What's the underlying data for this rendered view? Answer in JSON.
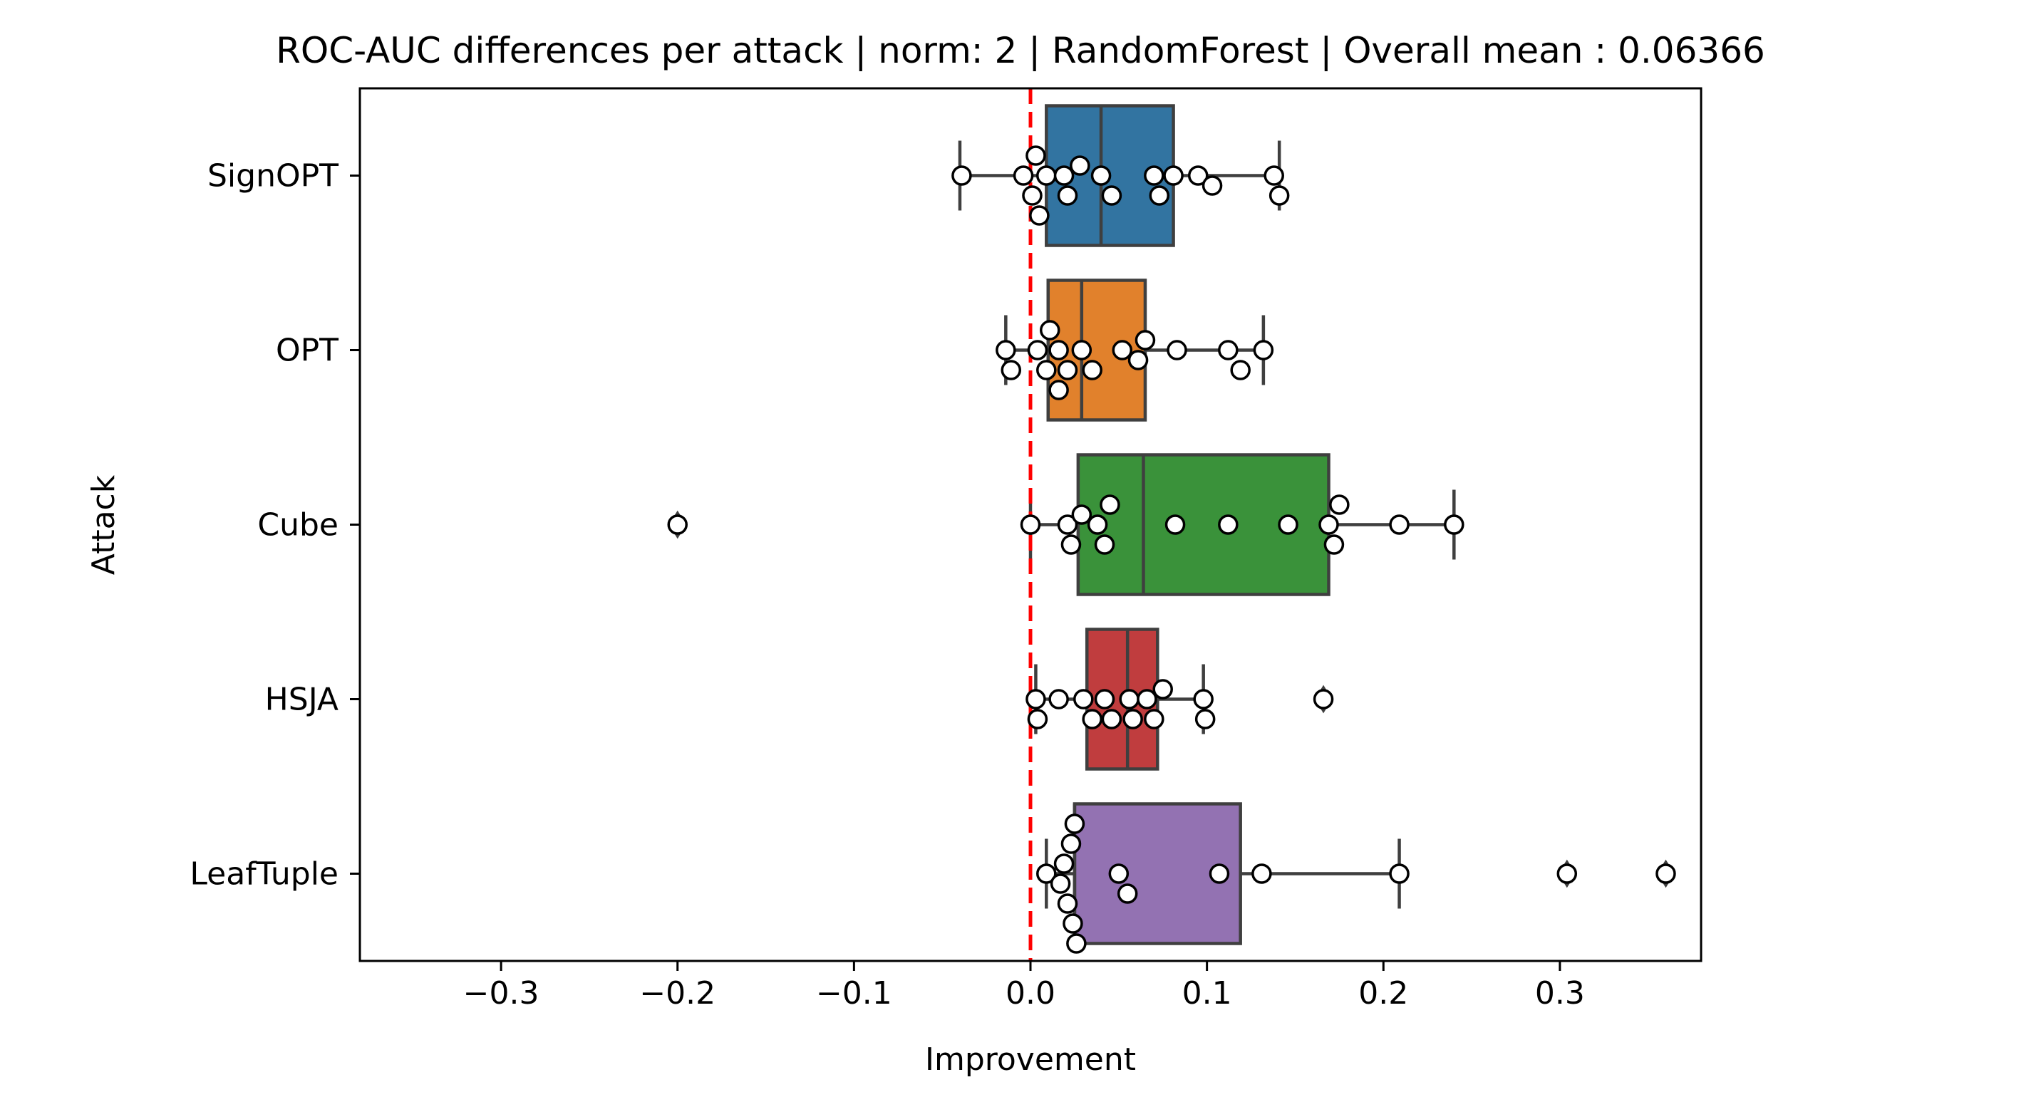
{
  "chart_data": {
    "type": "box",
    "orientation": "horizontal",
    "title": "ROC-AUC differences per attack | norm: 2 | RandomForest | Overall mean : 0.06366",
    "xlabel": "Improvement",
    "ylabel": "Attack",
    "xlim": [
      -0.38,
      0.38
    ],
    "xticks": [
      -0.3,
      -0.2,
      -0.1,
      0.0,
      0.1,
      0.2,
      0.3
    ],
    "xtick_labels": [
      "−0.3",
      "−0.2",
      "−0.1",
      "0.0",
      "0.1",
      "0.2",
      "0.3"
    ],
    "reference_line": {
      "x": 0.0,
      "color": "#ff0000",
      "style": "dashed"
    },
    "categories": [
      "SignOPT",
      "OPT",
      "Cube",
      "HSJA",
      "LeafTuple"
    ],
    "series": [
      {
        "category": "SignOPT",
        "color": "#3274a1",
        "q1": 0.009,
        "median": 0.04,
        "q3": 0.081,
        "whisker_low": -0.04,
        "whisker_high": 0.141,
        "outliers": [],
        "points": [
          -0.039,
          -0.004,
          0.001,
          0.003,
          0.005,
          0.009,
          0.019,
          0.021,
          0.028,
          0.04,
          0.046,
          0.07,
          0.073,
          0.081,
          0.095,
          0.103,
          0.138,
          0.141
        ]
      },
      {
        "category": "OPT",
        "color": "#e1812c",
        "q1": 0.01,
        "median": 0.029,
        "q3": 0.065,
        "whisker_low": -0.014,
        "whisker_high": 0.132,
        "outliers": [],
        "points": [
          -0.014,
          -0.011,
          0.004,
          0.009,
          0.011,
          0.016,
          0.016,
          0.021,
          0.029,
          0.035,
          0.052,
          0.061,
          0.065,
          0.083,
          0.112,
          0.119,
          0.132
        ]
      },
      {
        "category": "Cube",
        "color": "#3a923a",
        "q1": 0.027,
        "median": 0.064,
        "q3": 0.169,
        "whisker_low": 0.0,
        "whisker_high": 0.24,
        "outliers": [
          -0.2
        ],
        "points": [
          -0.2,
          0.0,
          0.021,
          0.023,
          0.029,
          0.038,
          0.042,
          0.045,
          0.082,
          0.112,
          0.146,
          0.169,
          0.172,
          0.175,
          0.209,
          0.24
        ]
      },
      {
        "category": "HSJA",
        "color": "#c03d3e",
        "q1": 0.032,
        "median": 0.055,
        "q3": 0.072,
        "whisker_low": 0.003,
        "whisker_high": 0.098,
        "outliers": [
          0.166
        ],
        "points": [
          0.003,
          0.004,
          0.016,
          0.03,
          0.035,
          0.042,
          0.046,
          0.056,
          0.058,
          0.066,
          0.07,
          0.075,
          0.098,
          0.099,
          0.166
        ]
      },
      {
        "category": "LeafTuple",
        "color": "#9372b2",
        "q1": 0.025,
        "median": 0.025,
        "q3": 0.119,
        "whisker_low": 0.009,
        "whisker_high": 0.209,
        "outliers": [
          0.304,
          0.36
        ],
        "points": [
          0.009,
          0.017,
          0.019,
          0.021,
          0.023,
          0.024,
          0.025,
          0.026,
          0.05,
          0.055,
          0.107,
          0.131,
          0.209,
          0.304,
          0.36
        ]
      }
    ]
  }
}
